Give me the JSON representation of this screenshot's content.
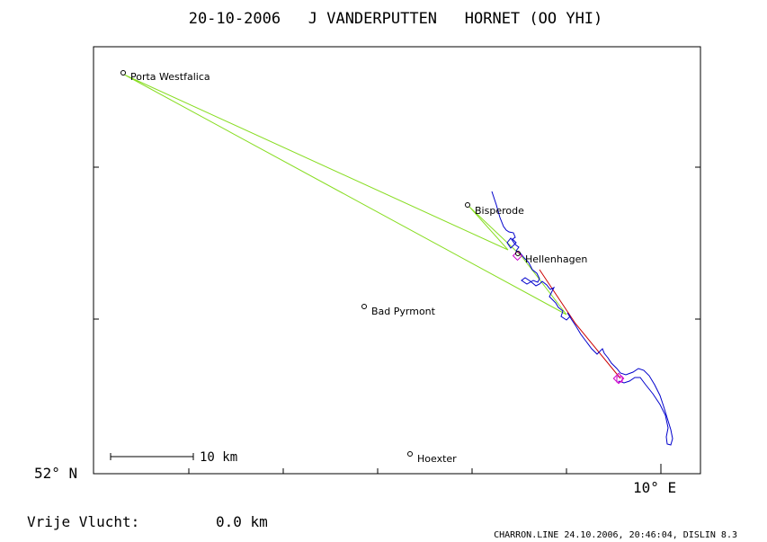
{
  "title": "20-10-2006   J VANDERPUTTEN   HORNET (OO YHI)",
  "axes": {
    "y_label": "52° N",
    "x_label": "10° E"
  },
  "scale_bar": {
    "label": "10 km"
  },
  "places": [
    {
      "id": "porta-westfalica",
      "name": "Porta Westfalica"
    },
    {
      "id": "bisperode",
      "name": "Bisperode"
    },
    {
      "id": "hellenhagen",
      "name": "Hellenhagen"
    },
    {
      "id": "bad-pyrmont",
      "name": "Bad Pyrmont"
    },
    {
      "id": "hoexter",
      "name": "Hoexter"
    }
  ],
  "free_flight": {
    "label": "Vrije Vlucht:",
    "value": "0.0 km"
  },
  "footer": "CHARRON.LINE 24.10.2006, 20:46:04, DISLIN 8.3",
  "colors": {
    "frame": "#000000",
    "track": "#0000cc",
    "task_line": "#88dd22",
    "final_leg": "#cc0000",
    "markers": "#cc00cc"
  }
}
